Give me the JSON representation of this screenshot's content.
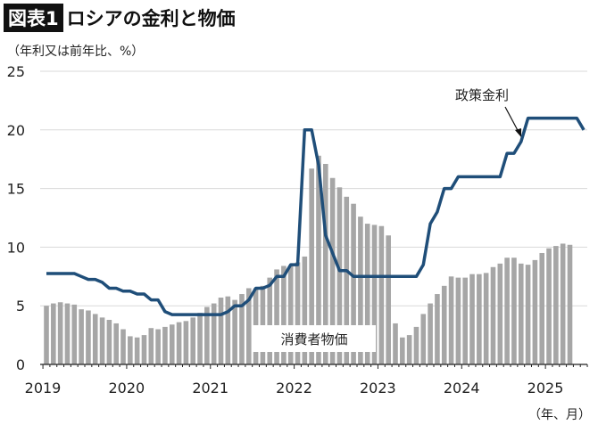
{
  "title": {
    "badge": "図表1",
    "text": "ロシアの金利と物価"
  },
  "chart_data": {
    "type": "bar+line",
    "ylabel": "（年利又は前年比、%）",
    "xlabel": "（年、月）",
    "ylim": [
      0,
      25
    ],
    "yticks": [
      0,
      5,
      10,
      15,
      20,
      25
    ],
    "xticks": [
      "2019",
      "2020",
      "2021",
      "2022",
      "2023",
      "2024",
      "2025"
    ],
    "grid": true,
    "series": [
      {
        "name": "消費者物価",
        "type": "bar",
        "color": "#a6a6a6",
        "start": "2019-01",
        "values": [
          5.0,
          5.2,
          5.3,
          5.2,
          5.1,
          4.7,
          4.6,
          4.3,
          4.0,
          3.8,
          3.5,
          3.0,
          2.4,
          2.3,
          2.5,
          3.1,
          3.0,
          3.2,
          3.4,
          3.6,
          3.7,
          4.0,
          4.4,
          4.9,
          5.2,
          5.7,
          5.8,
          5.5,
          6.0,
          6.5,
          6.5,
          6.7,
          7.4,
          8.1,
          8.4,
          8.4,
          8.7,
          9.2,
          16.7,
          17.8,
          17.1,
          15.9,
          15.1,
          14.3,
          13.7,
          12.6,
          12.0,
          11.9,
          11.8,
          11.0,
          3.5,
          2.3,
          2.5,
          3.2,
          4.3,
          5.2,
          6.0,
          6.7,
          7.5,
          7.4,
          7.4,
          7.7,
          7.7,
          7.8,
          8.3,
          8.6,
          9.1,
          9.1,
          8.6,
          8.5,
          8.9,
          9.5,
          9.9,
          10.1,
          10.3,
          10.2
        ]
      },
      {
        "name": "政策金利",
        "type": "line",
        "color": "#1f4e79",
        "start": "2019-01",
        "values": [
          7.75,
          7.75,
          7.75,
          7.75,
          7.75,
          7.5,
          7.25,
          7.25,
          7.0,
          6.5,
          6.5,
          6.25,
          6.25,
          6.0,
          6.0,
          5.5,
          5.5,
          4.5,
          4.25,
          4.25,
          4.25,
          4.25,
          4.25,
          4.25,
          4.25,
          4.25,
          4.5,
          5.0,
          5.0,
          5.5,
          6.5,
          6.5,
          6.75,
          7.5,
          7.5,
          8.5,
          8.5,
          20,
          20,
          17,
          11,
          9.5,
          8,
          8,
          7.5,
          7.5,
          7.5,
          7.5,
          7.5,
          7.5,
          7.5,
          7.5,
          7.5,
          7.5,
          8.5,
          12,
          13,
          15,
          15,
          16,
          16,
          16,
          16,
          16,
          16,
          16,
          18,
          18,
          19,
          21,
          21,
          21,
          21,
          21,
          21,
          21,
          21,
          20
        ]
      }
    ]
  }
}
